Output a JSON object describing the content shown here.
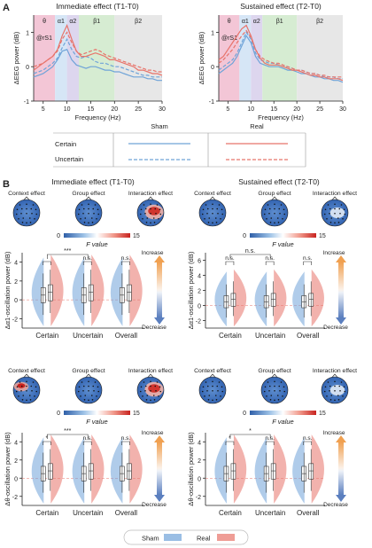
{
  "panel_a": {
    "letter": "A",
    "left_title": "Immediate effect (T1-T0)",
    "right_title": "Sustained effect (T2-T0)",
    "band_labels": [
      "θ",
      "α1",
      "α2",
      "β1",
      "β2"
    ],
    "site_label": "@rS1",
    "xlabel": "Frequency (Hz)",
    "ylabel": "ΔEEG power (dB)",
    "xticks": [
      "5",
      "10",
      "15",
      "20",
      "25",
      "30"
    ],
    "yticks": [
      "1",
      "0",
      "-1"
    ],
    "legend": {
      "col_sham": "Sham",
      "col_real": "Real",
      "row_certain": "Certain",
      "row_uncertain": "Uncertain"
    }
  },
  "panel_b": {
    "letter": "B",
    "left_title": "Immediate effect (T1-T0)",
    "right_title": "Sustained effect (T2-T0)",
    "topo_titles": [
      "Context effect",
      "Group effect",
      "Interaction effect"
    ],
    "colorbar": {
      "min": "0",
      "max": "15",
      "label": "F value"
    },
    "alpha_ylabel": "Δα1-oscillation power (dB)",
    "theta_ylabel": "Δθ-oscillation power (dB)",
    "violin_categories": [
      "Certain",
      "Uncertain",
      "Overall"
    ],
    "arrow_up": "Increase",
    "arrow_down": "Decrease",
    "sig_labels": {
      "one": "*",
      "three": "***",
      "ns": "n.s."
    },
    "yticks_alpha_left": [
      "4",
      "2",
      "0",
      "-2"
    ],
    "yticks_alpha_right": [
      "6",
      "4",
      "2",
      "0",
      "-2"
    ],
    "yticks_theta_left": [
      "4",
      "2",
      "0",
      "-2"
    ],
    "yticks_theta_right": [
      "4",
      "2",
      "0",
      "-2"
    ]
  },
  "bottom_legend": {
    "sham": "Sham",
    "real": "Real"
  },
  "colors": {
    "sham": "#6fa3d8",
    "real": "#e8736a",
    "theta_band": "#f3c6d6",
    "alpha1_band": "#d6e6f6",
    "alpha2_band": "#ddd6ee",
    "beta1_band": "#d6ecd2",
    "beta2_band": "#e7e7e7"
  },
  "chart_data": [
    {
      "type": "line",
      "title": "Immediate effect (T1-T0)",
      "xlabel": "Frequency (Hz)",
      "ylabel": "ΔEEG power (dB)",
      "xlim": [
        3,
        30
      ],
      "ylim": [
        -1,
        1.5
      ],
      "x": [
        3,
        4,
        5,
        6,
        7,
        8,
        9,
        10,
        11,
        12,
        13,
        14,
        15,
        16,
        17,
        18,
        19,
        20,
        21,
        22,
        23,
        24,
        25,
        26,
        27,
        28,
        29,
        30
      ],
      "series": [
        {
          "name": "Sham Certain",
          "values": [
            -0.3,
            -0.25,
            -0.2,
            -0.1,
            0.0,
            0.2,
            0.45,
            0.5,
            0.2,
            0.05,
            0.0,
            -0.05,
            0.0,
            0.0,
            -0.05,
            -0.1,
            -0.1,
            -0.15,
            -0.15,
            -0.2,
            -0.25,
            -0.3,
            -0.3,
            -0.3,
            -0.35,
            -0.35,
            -0.4,
            -0.4
          ]
        },
        {
          "name": "Sham Uncertain",
          "values": [
            -0.2,
            -0.15,
            -0.1,
            0.0,
            0.1,
            0.25,
            0.55,
            0.8,
            0.5,
            0.3,
            0.25,
            0.3,
            0.25,
            0.15,
            0.1,
            0.1,
            0.05,
            0.0,
            0.0,
            -0.05,
            -0.1,
            -0.15,
            -0.2,
            -0.25,
            -0.25,
            -0.3,
            -0.3,
            -0.3
          ]
        },
        {
          "name": "Real Certain",
          "values": [
            -0.1,
            0.0,
            0.1,
            0.2,
            0.3,
            0.5,
            0.9,
            1.2,
            0.8,
            0.45,
            0.3,
            0.3,
            0.35,
            0.4,
            0.35,
            0.3,
            0.2,
            0.2,
            0.15,
            0.1,
            0.05,
            0.0,
            -0.1,
            -0.1,
            -0.15,
            -0.2,
            -0.2,
            -0.25
          ]
        },
        {
          "name": "Real Uncertain",
          "values": [
            0.0,
            0.05,
            0.1,
            0.2,
            0.3,
            0.45,
            0.8,
            1.0,
            0.7,
            0.45,
            0.35,
            0.4,
            0.45,
            0.5,
            0.45,
            0.35,
            0.3,
            0.25,
            0.2,
            0.15,
            0.1,
            0.05,
            0.0,
            -0.05,
            -0.1,
            -0.1,
            -0.15,
            -0.15
          ]
        }
      ]
    },
    {
      "type": "line",
      "title": "Sustained effect (T2-T0)",
      "xlabel": "Frequency (Hz)",
      "ylabel": "ΔEEG power (dB)",
      "xlim": [
        3,
        30
      ],
      "ylim": [
        -1,
        1.5
      ],
      "x": [
        3,
        4,
        5,
        6,
        7,
        8,
        9,
        10,
        11,
        12,
        13,
        14,
        15,
        16,
        17,
        18,
        19,
        20,
        21,
        22,
        23,
        24,
        25,
        26,
        27,
        28,
        29,
        30
      ],
      "series": [
        {
          "name": "Sham Certain",
          "values": [
            -0.2,
            -0.1,
            0.0,
            0.1,
            0.3,
            0.6,
            0.9,
            0.7,
            0.3,
            0.1,
            0.05,
            0.0,
            0.0,
            0.0,
            -0.05,
            -0.1,
            -0.1,
            -0.15,
            -0.2,
            -0.2,
            -0.25,
            -0.3,
            -0.3,
            -0.35,
            -0.35,
            -0.4,
            -0.4,
            -0.45
          ]
        },
        {
          "name": "Sham Uncertain",
          "values": [
            -0.1,
            0.0,
            0.1,
            0.2,
            0.4,
            0.7,
            1.0,
            0.8,
            0.4,
            0.2,
            0.15,
            0.1,
            0.1,
            0.05,
            0.0,
            0.0,
            -0.05,
            -0.1,
            -0.1,
            -0.15,
            -0.2,
            -0.2,
            -0.25,
            -0.3,
            -0.3,
            -0.3,
            -0.35,
            -0.35
          ]
        },
        {
          "name": "Real Certain",
          "values": [
            0.2,
            0.3,
            0.5,
            0.7,
            0.9,
            1.1,
            1.2,
            0.9,
            0.5,
            0.25,
            0.1,
            0.05,
            0.05,
            0.05,
            0.0,
            -0.05,
            -0.1,
            -0.1,
            -0.15,
            -0.2,
            -0.25,
            -0.25,
            -0.3,
            -0.3,
            -0.35,
            -0.35,
            -0.35,
            -0.4
          ]
        },
        {
          "name": "Real Uncertain",
          "values": [
            0.1,
            0.2,
            0.35,
            0.5,
            0.7,
            0.9,
            1.05,
            0.85,
            0.5,
            0.3,
            0.2,
            0.15,
            0.1,
            0.1,
            0.05,
            0.0,
            -0.05,
            -0.1,
            -0.1,
            -0.15,
            -0.2,
            -0.2,
            -0.25,
            -0.25,
            -0.3,
            -0.3,
            -0.3,
            -0.3
          ]
        }
      ]
    }
  ]
}
